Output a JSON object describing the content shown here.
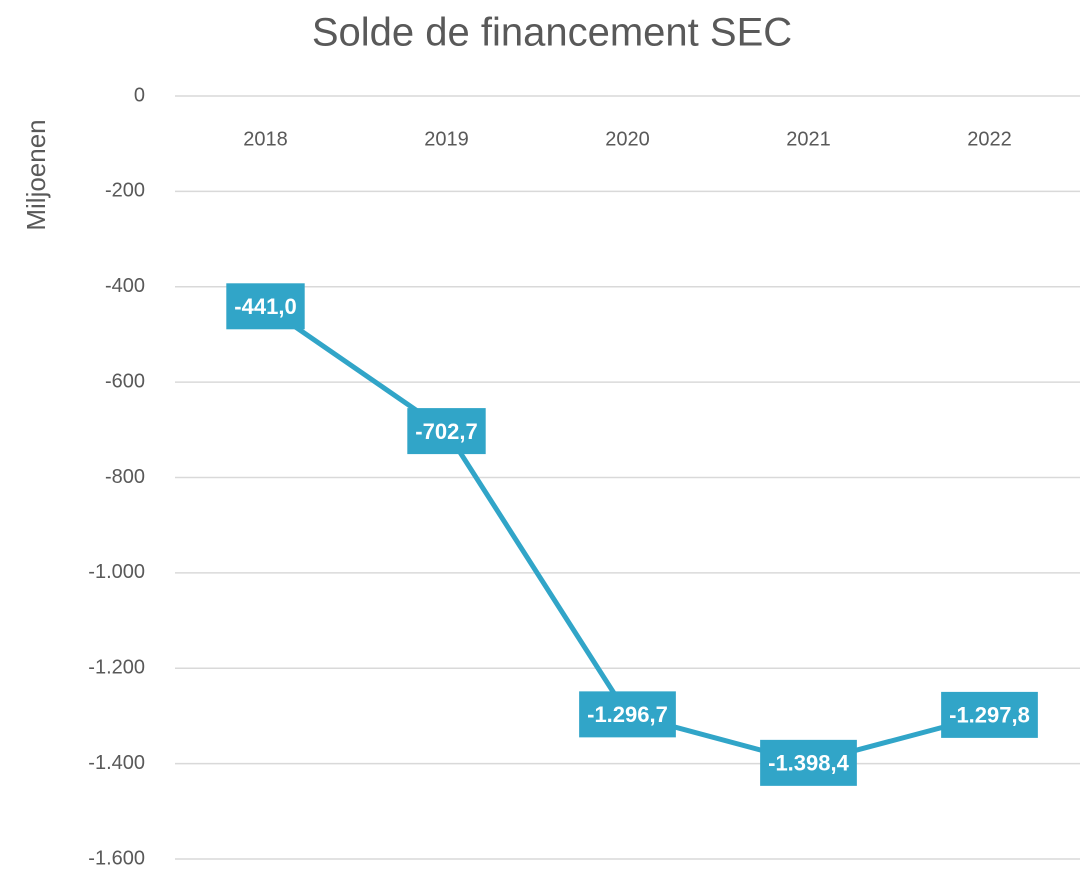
{
  "chart_data": {
    "type": "line",
    "title": "Solde de financement SEC",
    "y_label": "Miljoenen",
    "categories": [
      "2018",
      "2019",
      "2020",
      "2021",
      "2022"
    ],
    "series": [
      {
        "name": "Solde de financement SEC",
        "color": "#31a5c8",
        "values": [
          -441.0,
          -702.7,
          -1296.7,
          -1398.4,
          -1297.8
        ],
        "value_labels": [
          "-441,0",
          "-702,7",
          "-1.296,7",
          "-1.398,4",
          "-1.297,8"
        ]
      }
    ],
    "ylim": [
      -1600,
      0
    ],
    "yticks": [
      0,
      -200,
      -400,
      -600,
      -800,
      {
        "value": -1000,
        "label": "-1.000"
      },
      {
        "value": -1200,
        "label": "-1.200"
      },
      {
        "value": -1400,
        "label": "-1.400"
      },
      {
        "value": -1600,
        "label": "-1.600"
      }
    ],
    "grid": true
  }
}
